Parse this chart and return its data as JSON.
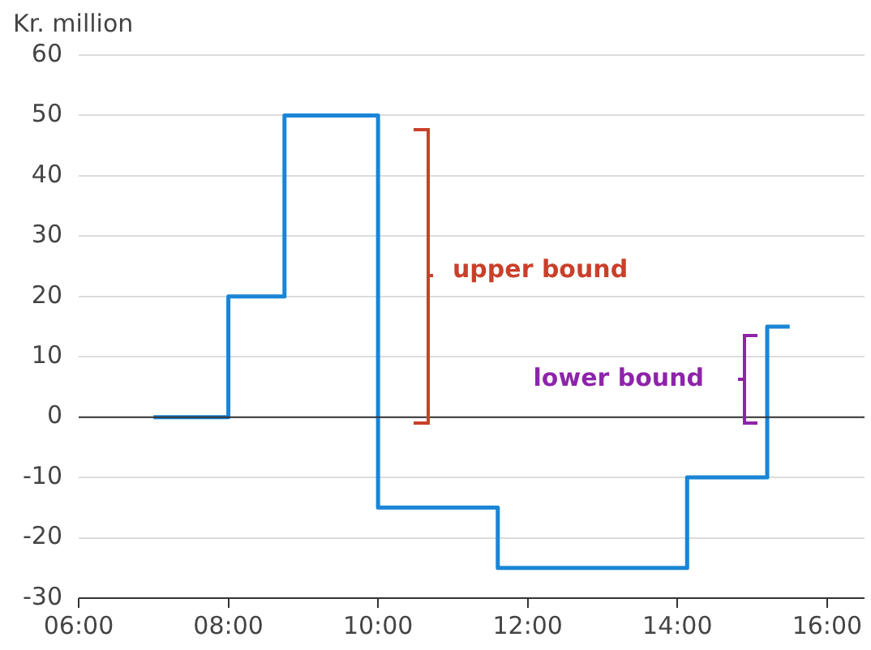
{
  "chart_data": {
    "type": "step",
    "ylabel": "Kr. million",
    "series": [
      {
        "color": "#1a85d6",
        "x": [
          7,
          8,
          8.75,
          10,
          11.6,
          14.13,
          15.2,
          15.5
        ],
        "values": [
          0,
          20,
          50,
          -15,
          -25,
          -10,
          15,
          15
        ]
      }
    ],
    "xlim": [
      6,
      16.5
    ],
    "xticks": [
      {
        "value": 6,
        "label": "06:00"
      },
      {
        "value": 8,
        "label": "08:00"
      },
      {
        "value": 10,
        "label": "10:00"
      },
      {
        "value": 12,
        "label": "12:00"
      },
      {
        "value": 14,
        "label": "14:00"
      },
      {
        "value": 16,
        "label": "16:00"
      }
    ],
    "ylim": [
      -30,
      60
    ],
    "yticks": [
      -30,
      -20,
      -10,
      0,
      10,
      20,
      30,
      40,
      50,
      60
    ],
    "grid": "y",
    "legend": false,
    "annotations": [
      "upper bound",
      "lower bound"
    ]
  }
}
